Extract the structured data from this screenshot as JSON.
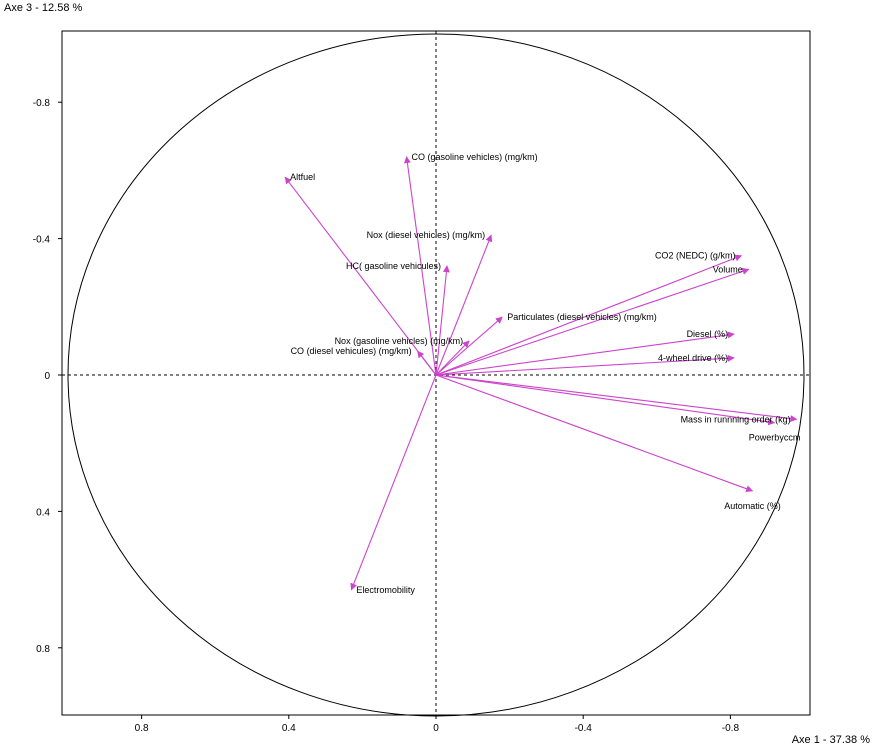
{
  "chart_data": {
    "type": "scatter",
    "subtype": "correlation-circle",
    "xlabel": "Axe 1  -  37.38 %",
    "ylabel": "Axe 3  -  12.58 %",
    "xlim": [
      1.0,
      -1.0
    ],
    "ylim": [
      1.0,
      -1.0
    ],
    "x_reversed": true,
    "y_reversed": true,
    "x_ticks": [
      {
        "value": 0.8,
        "label": "0.8"
      },
      {
        "value": 0.4,
        "label": "0.4"
      },
      {
        "value": 0,
        "label": "0"
      },
      {
        "value": -0.4,
        "label": "-0.4"
      },
      {
        "value": -0.8,
        "label": "-0.8"
      }
    ],
    "y_ticks": [
      {
        "value": -0.8,
        "label": "-0.8"
      },
      {
        "value": -0.4,
        "label": "-0.4"
      },
      {
        "value": 0,
        "label": "0"
      },
      {
        "value": 0.4,
        "label": "0.4"
      },
      {
        "value": 0.8,
        "label": "0.8"
      }
    ],
    "unit_circle": true,
    "grid": false,
    "arrow_color": "#cc44cc",
    "circle_color": "#000000",
    "variables": [
      {
        "name": "Altfuel",
        "x": 0.41,
        "y": -0.58,
        "label_pos": "right"
      },
      {
        "name": "CO (gasoline vehicles) (mg/km)",
        "x": 0.08,
        "y": -0.64,
        "label_pos": "right"
      },
      {
        "name": "Nox (diesel vehicles) (mg/km)",
        "x": -0.15,
        "y": -0.41,
        "label_pos": "left"
      },
      {
        "name": "HC( gasoline vehicules)",
        "x": -0.03,
        "y": -0.32,
        "label_pos": "left"
      },
      {
        "name": "CO2 (NEDC) (g/km)",
        "x": -0.83,
        "y": -0.35,
        "label_pos": "left"
      },
      {
        "name": "Volume",
        "x": -0.85,
        "y": -0.31,
        "label_pos": "left"
      },
      {
        "name": "Particulates (diesel vehicles) (mg/km)",
        "x": -0.18,
        "y": -0.17,
        "label_pos": "right"
      },
      {
        "name": "CO (diesel vehicules) (mg/km)",
        "x": 0.05,
        "y": -0.07,
        "label_pos": "left"
      },
      {
        "name": "Nox (gasoline vehicles) (mg/km)",
        "x": -0.09,
        "y": -0.1,
        "label_pos": "left"
      },
      {
        "name": "Diesel (%)",
        "x": -0.81,
        "y": -0.12,
        "label_pos": "left"
      },
      {
        "name": "4-wheel drive (%)",
        "x": -0.81,
        "y": -0.05,
        "label_pos": "left"
      },
      {
        "name": "Mass in runnning order (kg)",
        "x": -0.98,
        "y": 0.13,
        "label_pos": "left"
      },
      {
        "name": "Powerbyccm",
        "x": -0.92,
        "y": 0.14,
        "label_pos": "below"
      },
      {
        "name": "Automatic (%)",
        "x": -0.86,
        "y": 0.34,
        "label_pos": "below"
      },
      {
        "name": "Electromobility",
        "x": 0.23,
        "y": 0.63,
        "label_pos": "right"
      }
    ]
  }
}
